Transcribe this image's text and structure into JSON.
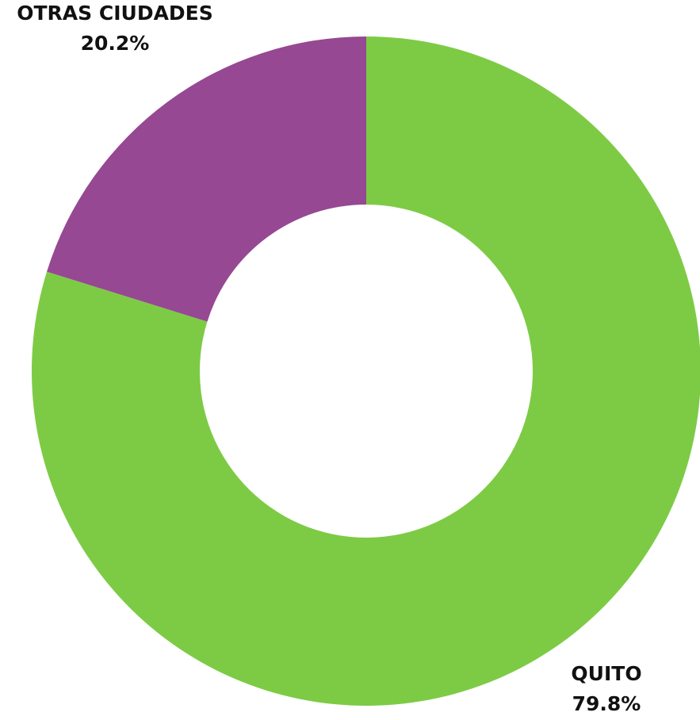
{
  "chart_data": {
    "type": "donut",
    "categories": [
      "QUITO",
      "OTRAS CIUDADES"
    ],
    "values": [
      79.8,
      20.2
    ],
    "value_labels": [
      "79.8%",
      "20.2%"
    ],
    "colors": [
      "#7dcb45",
      "#964893"
    ]
  }
}
